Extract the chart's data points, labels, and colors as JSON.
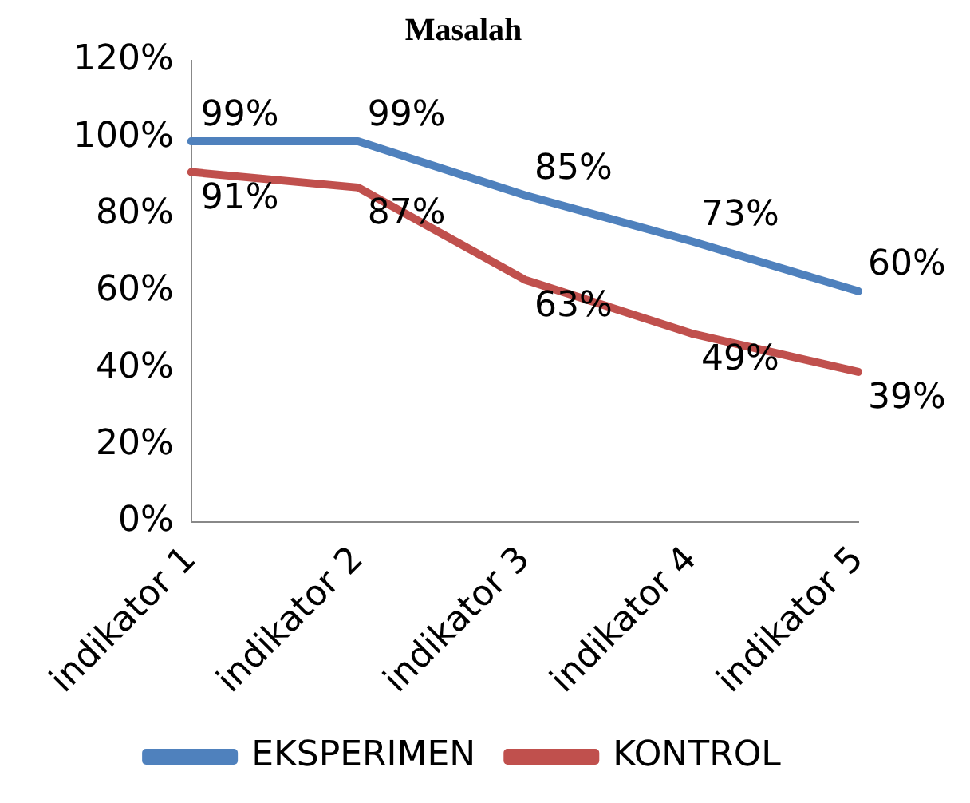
{
  "chart_data": {
    "type": "line",
    "title": "Masalah",
    "categories": [
      "indikator 1",
      "indikator 2",
      "indikator 3",
      "indikator 4",
      "indikator 5"
    ],
    "series": [
      {
        "name": "EKSPERIMEN",
        "color": "#4f81bd",
        "values": [
          99,
          99,
          85,
          73,
          60
        ],
        "value_labels": [
          "99%",
          "99%",
          "85%",
          "73%",
          "60%"
        ]
      },
      {
        "name": "KONTROL",
        "color": "#c0504d",
        "values": [
          91,
          87,
          63,
          49,
          39
        ],
        "value_labels": [
          "91%",
          "87%",
          "63%",
          "49%",
          "39%"
        ]
      }
    ],
    "ylim": [
      0,
      120
    ],
    "yticks": [
      {
        "value": 0,
        "label": "0%"
      },
      {
        "value": 20,
        "label": "20%"
      },
      {
        "value": 40,
        "label": "40%"
      },
      {
        "value": 60,
        "label": "60%"
      },
      {
        "value": 80,
        "label": "80%"
      },
      {
        "value": 100,
        "label": "100%"
      },
      {
        "value": 120,
        "label": "120%"
      }
    ],
    "grid": false,
    "legend": "bottom",
    "marker": "none",
    "line_style": "solid"
  }
}
